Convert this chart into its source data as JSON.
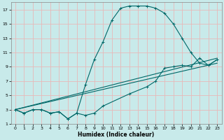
{
  "xlabel": "Humidex (Indice chaleur)",
  "bg_color": "#c8eaea",
  "grid_color": "#e8b8b8",
  "line_color": "#006868",
  "xlim": [
    -0.5,
    23.5
  ],
  "ylim": [
    1,
    18
  ],
  "xticks": [
    0,
    1,
    2,
    3,
    4,
    5,
    6,
    7,
    8,
    9,
    10,
    11,
    12,
    13,
    14,
    15,
    16,
    17,
    18,
    19,
    20,
    21,
    22,
    23
  ],
  "yticks": [
    1,
    3,
    5,
    7,
    9,
    11,
    13,
    15,
    17
  ],
  "line1_x": [
    0,
    1,
    2,
    3,
    4,
    5,
    6,
    7,
    8,
    9,
    10,
    11,
    12,
    13,
    14,
    15,
    16,
    17,
    18,
    19,
    20,
    21,
    22,
    23
  ],
  "line1_y": [
    3,
    2.5,
    3,
    3,
    2.5,
    2.7,
    1.7,
    2.5,
    6.5,
    10,
    12.5,
    15.5,
    17.2,
    17.5,
    17.5,
    17.5,
    17.2,
    16.5,
    15,
    13,
    11,
    9.5,
    9.2,
    10
  ],
  "line2_x": [
    0,
    1,
    2,
    3,
    4,
    5,
    6,
    7,
    8,
    9,
    10,
    13,
    15,
    16,
    17,
    18,
    19,
    20,
    21,
    22,
    23
  ],
  "line2_y": [
    3,
    2.5,
    3,
    3,
    2.5,
    2.7,
    1.7,
    2.5,
    2.2,
    2.5,
    3.5,
    5.2,
    6.2,
    7.0,
    8.8,
    9.0,
    9.2,
    9.0,
    10.2,
    9.2,
    10.0
  ],
  "line3_x": [
    0,
    23
  ],
  "line3_y": [
    3,
    10.2
  ],
  "line4_x": [
    0,
    23
  ],
  "line4_y": [
    3,
    9.5
  ]
}
